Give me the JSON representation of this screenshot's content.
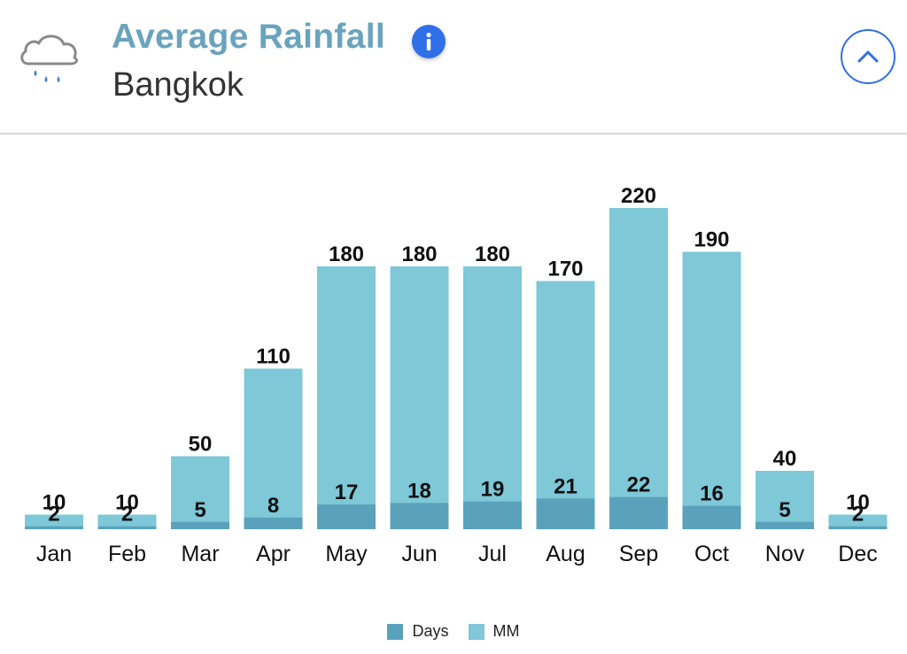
{
  "header": {
    "title": "Average Rainfall",
    "subtitle": "Bangkok",
    "weather_icon": "rain-cloud-icon",
    "info_icon": "info-icon",
    "collapse_icon": "chevron-up-icon"
  },
  "colors": {
    "mm": "#7ec8d8",
    "days": "#5aa2bb",
    "title": "#6aa3bd",
    "accent": "#2f6fe8"
  },
  "legend": {
    "days": "Days",
    "mm": "MM"
  },
  "chart_data": {
    "type": "bar",
    "title": "Average Rainfall",
    "categories": [
      "Jan",
      "Feb",
      "Mar",
      "Apr",
      "May",
      "Jun",
      "Jul",
      "Aug",
      "Sep",
      "Oct",
      "Nov",
      "Dec"
    ],
    "series": [
      {
        "name": "MM",
        "values": [
          10,
          10,
          50,
          110,
          180,
          180,
          180,
          170,
          220,
          190,
          40,
          10
        ]
      },
      {
        "name": "Days",
        "values": [
          2,
          2,
          5,
          8,
          17,
          18,
          19,
          21,
          22,
          16,
          5,
          2
        ]
      }
    ],
    "legend_position": "bottom",
    "grid": false
  }
}
